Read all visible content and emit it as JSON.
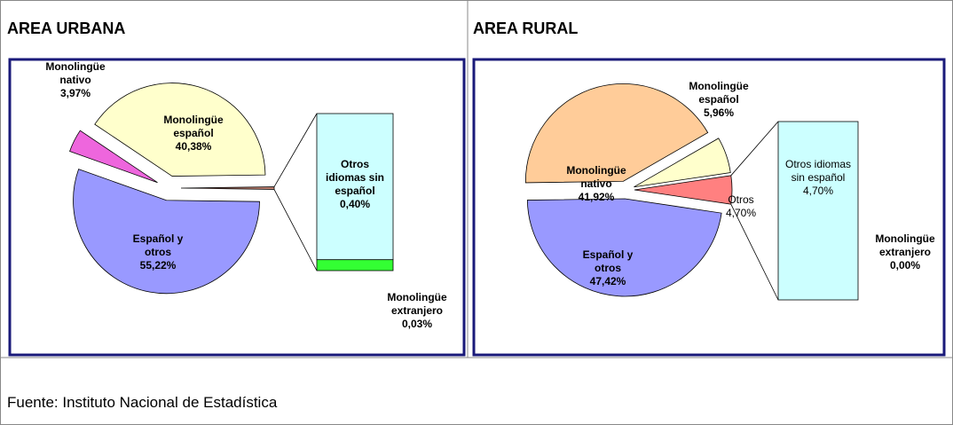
{
  "chart_data": [
    {
      "type": "pie-of-bar",
      "title": "AREA URBANA",
      "categories": [
        null,
        "Español y otros",
        "Monolingüe nativo",
        "Monolingüe español"
      ],
      "values": [
        0.43,
        55.22,
        3.97,
        40.38
      ],
      "value_labels": [
        null,
        "55,22%",
        "3,97%",
        "40,38%"
      ],
      "colors": [
        "#cc8877",
        "#9999ff",
        "#ee66dd",
        "#ffffcc"
      ],
      "bar": {
        "categories": [
          "Otros idiomas sin español",
          "Monolingüe extranjero"
        ],
        "values": [
          0.4,
          0.03
        ],
        "value_labels": [
          "0,40%",
          "0,03%"
        ],
        "colors": [
          "#ccffff",
          "#33ff33"
        ]
      }
    },
    {
      "type": "pie-of-bar",
      "title": "AREA RURAL",
      "categories": [
        "Otros",
        "Español y otros",
        "Monolingüe nativo",
        "Monolingüe español"
      ],
      "values": [
        4.7,
        47.42,
        41.92,
        5.96
      ],
      "value_labels": [
        "4,70%",
        "47,42%",
        "41,92%",
        "5,96%"
      ],
      "colors": [
        "#ff8080",
        "#9999ff",
        "#ffcc99",
        "#ffffcc"
      ],
      "bar": {
        "categories": [
          "Otros idiomas sin español",
          "Monolingüe extranjero"
        ],
        "values": [
          4.7,
          0.0
        ],
        "value_labels": [
          "4,70%",
          "0,00%"
        ],
        "colors": [
          "#ccffff",
          "#33ff33"
        ]
      }
    }
  ],
  "source": "Fuente: Instituto Nacional de Estadística"
}
